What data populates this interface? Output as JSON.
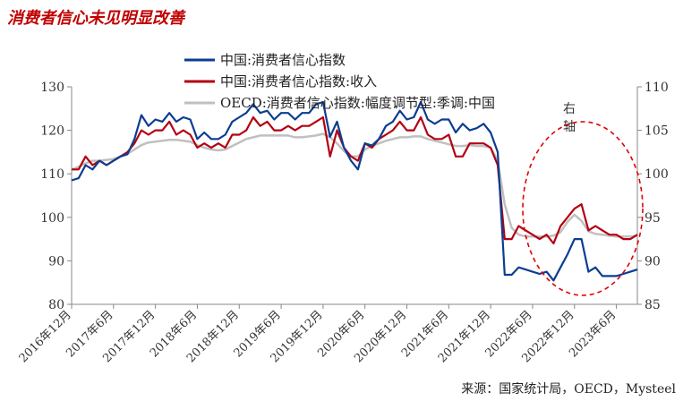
{
  "title": "消费者信心未见明显改善",
  "source": "来源：国家统计局，OECD，Mysteel",
  "chart_data": {
    "type": "line",
    "x": [
      "2016-12",
      "2017-01",
      "2017-02",
      "2017-03",
      "2017-04",
      "2017-05",
      "2017-06",
      "2017-07",
      "2017-08",
      "2017-09",
      "2017-10",
      "2017-11",
      "2017-12",
      "2018-01",
      "2018-02",
      "2018-03",
      "2018-04",
      "2018-05",
      "2018-06",
      "2018-07",
      "2018-08",
      "2018-09",
      "2018-10",
      "2018-11",
      "2018-12",
      "2019-01",
      "2019-02",
      "2019-03",
      "2019-04",
      "2019-05",
      "2019-06",
      "2019-07",
      "2019-08",
      "2019-09",
      "2019-10",
      "2019-11",
      "2019-12",
      "2020-01",
      "2020-02",
      "2020-03",
      "2020-04",
      "2020-05",
      "2020-06",
      "2020-07",
      "2020-08",
      "2020-09",
      "2020-10",
      "2020-11",
      "2020-12",
      "2021-01",
      "2021-02",
      "2021-03",
      "2021-04",
      "2021-05",
      "2021-06",
      "2021-07",
      "2021-08",
      "2021-09",
      "2021-10",
      "2021-11",
      "2021-12",
      "2022-01",
      "2022-02",
      "2022-03",
      "2022-04",
      "2022-05",
      "2022-06",
      "2022-07",
      "2022-08",
      "2022-09",
      "2022-10",
      "2022-11",
      "2022-12",
      "2023-01",
      "2023-02",
      "2023-03",
      "2023-04",
      "2023-05",
      "2023-06",
      "2023-07",
      "2023-08",
      "2023-09"
    ],
    "x_tick_labels": [
      "2016年12月",
      "2017年6月",
      "2017年12月",
      "2018年6月",
      "2018年12月",
      "2019年6月",
      "2019年12月",
      "2020年6月",
      "2020年12月",
      "2021年6月",
      "2021年12月",
      "2022年6月",
      "2022年12月",
      "2023年6月"
    ],
    "series": [
      {
        "name": "中国:消费者信心指数",
        "axis": "left",
        "color": "#0b3d91",
        "values": [
          108.5,
          109.0,
          112.0,
          111.0,
          113.0,
          112.0,
          113.0,
          114.0,
          114.5,
          118.0,
          123.5,
          121.0,
          122.5,
          122.0,
          124.0,
          122.0,
          123.0,
          122.5,
          118.0,
          119.5,
          118.0,
          118.0,
          119.0,
          122.0,
          123.0,
          124.0,
          126.0,
          124.0,
          124.5,
          122.5,
          124.0,
          124.0,
          122.5,
          124.0,
          124.0,
          126.0,
          126.5,
          118.5,
          122.0,
          116.0,
          113.0,
          111.0,
          117.0,
          116.5,
          118.0,
          121.0,
          122.0,
          124.5,
          122.5,
          123.0,
          126.5,
          122.5,
          121.5,
          122.5,
          122.5,
          119.5,
          121.5,
          120.0,
          120.5,
          121.5,
          119.5,
          115.0,
          86.8,
          86.8,
          88.5,
          88.0,
          87.5,
          87.0,
          87.5,
          85.5,
          88.5,
          91.5,
          95.0,
          95.0,
          87.5,
          88.5,
          86.5,
          86.5,
          86.5,
          87.0,
          87.5,
          88.0
        ]
      },
      {
        "name": "中国:消费者信心指数:收入",
        "axis": "right",
        "color": "#b30012",
        "values": [
          100.5,
          100.5,
          102.0,
          101.0,
          101.5,
          101.0,
          101.5,
          102.0,
          102.5,
          103.5,
          105.0,
          104.5,
          105.0,
          105.0,
          106.0,
          104.5,
          105.0,
          104.5,
          103.0,
          103.5,
          103.0,
          103.5,
          103.0,
          104.5,
          104.5,
          105.0,
          106.5,
          105.5,
          106.0,
          105.0,
          105.0,
          105.5,
          105.0,
          105.5,
          105.5,
          106.0,
          106.5,
          102.0,
          105.0,
          103.0,
          102.0,
          101.5,
          103.5,
          103.0,
          104.0,
          104.5,
          105.0,
          106.0,
          105.0,
          105.0,
          106.5,
          104.5,
          104.0,
          104.0,
          104.5,
          102.0,
          102.0,
          103.5,
          103.5,
          103.5,
          103.0,
          101.0,
          92.5,
          92.5,
          94.0,
          93.5,
          93.0,
          92.5,
          93.0,
          92.0,
          94.0,
          95.0,
          96.0,
          96.5,
          93.5,
          94.0,
          93.5,
          93.0,
          93.0,
          92.5,
          92.5,
          93.0
        ]
      },
      {
        "name": "OECD:消费者信心指数:幅度调节型:季调:中国",
        "axis": "right",
        "color": "#c0c0c0",
        "values": [
          100.5,
          100.8,
          101.2,
          101.5,
          101.5,
          101.6,
          101.7,
          102.0,
          102.3,
          102.8,
          103.3,
          103.6,
          103.7,
          103.8,
          103.9,
          103.9,
          103.8,
          103.7,
          103.3,
          103.0,
          102.8,
          102.7,
          102.8,
          103.2,
          103.6,
          104.0,
          104.2,
          104.4,
          104.4,
          104.4,
          104.4,
          104.4,
          104.2,
          104.2,
          104.3,
          104.4,
          104.6,
          104.2,
          103.5,
          102.6,
          102.0,
          102.0,
          102.8,
          103.2,
          103.5,
          103.8,
          104.0,
          104.2,
          104.2,
          104.3,
          104.3,
          104.0,
          103.8,
          103.6,
          103.4,
          103.2,
          103.2,
          103.3,
          103.2,
          103.2,
          103.0,
          101.5,
          96.5,
          93.8,
          93.0,
          92.8,
          92.8,
          92.8,
          92.8,
          92.9,
          93.3,
          94.5,
          95.3,
          94.6,
          93.4,
          93.1,
          93.0,
          92.9,
          92.8,
          92.8,
          92.8,
          92.9
        ]
      }
    ],
    "left_axis": {
      "min": 80,
      "max": 130,
      "ticks": [
        80,
        90,
        100,
        110,
        120,
        130
      ]
    },
    "right_axis": {
      "min": 85,
      "max": 110,
      "ticks": [
        85,
        90,
        95,
        100,
        105,
        110
      ],
      "label": "右轴"
    },
    "legend_position": "top"
  }
}
